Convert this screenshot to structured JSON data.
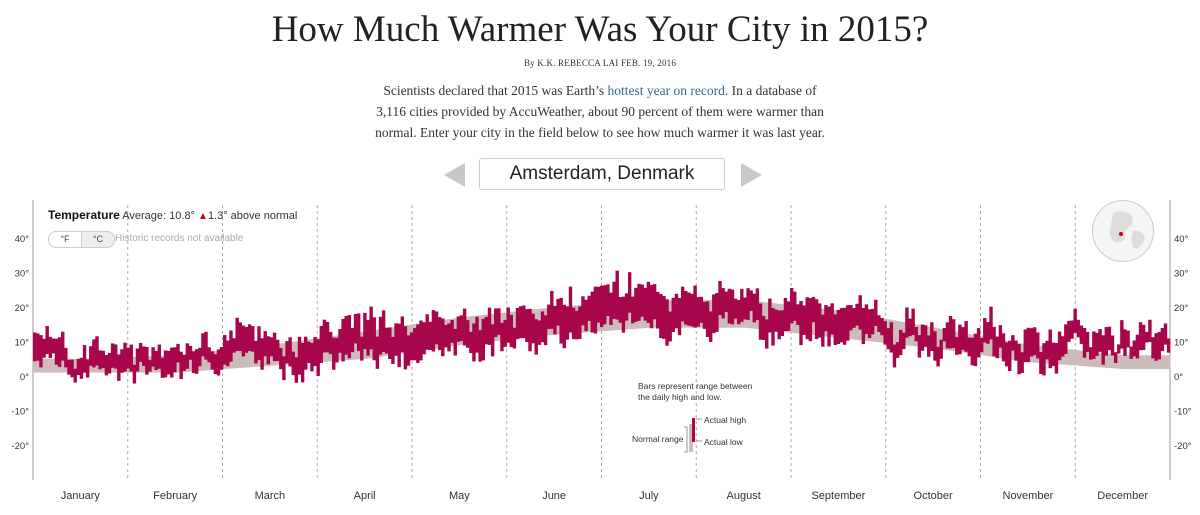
{
  "headline": "How Much Warmer Was Your City in 2015?",
  "byline": "By K.K. REBECCA LAI FEB. 19, 2016",
  "intro": {
    "before": "Scientists declared that 2015 was Earth’s ",
    "link": "hottest year on record",
    "after": ". In a database of 3,116 cities provided by AccuWeather, about 90 percent of them were warmer than normal. Enter your city in the field below to see how much warmer it was last year."
  },
  "city_search": {
    "value": "Amsterdam, Denmark"
  },
  "legend": {
    "label": "Temperature",
    "average_text": "Average: 10.8°",
    "delta_arrow": "▲",
    "delta_text": "1.3° above normal",
    "unit_f": "°F",
    "unit_c": "°C",
    "historic_note": "Historic records not available"
  },
  "annotation": {
    "line1": "Bars represent range between",
    "line2": "the daily high and low.",
    "actual_high": "Actual high",
    "actual_low": "Actual low",
    "normal_range": "Normal range"
  },
  "colors": {
    "actual": "#a8064a",
    "normal": "#cdbcbc",
    "accent_link": "#326891"
  },
  "chart_data": {
    "type": "bar",
    "y_ticks": [
      "40°",
      "30°",
      "20°",
      "10°",
      "0°",
      "-10°",
      "-20°"
    ],
    "y_tick_values": [
      40,
      30,
      20,
      10,
      0,
      -10,
      -20
    ],
    "ylim": [
      -30,
      45
    ],
    "months": [
      "January",
      "February",
      "March",
      "April",
      "May",
      "June",
      "July",
      "August",
      "September",
      "October",
      "November",
      "December"
    ],
    "normal_band_monthly": {
      "months": [
        "Jan",
        "Feb",
        "Mar",
        "Apr",
        "May",
        "Jun",
        "Jul",
        "Aug",
        "Sep",
        "Oct",
        "Nov",
        "Dec"
      ],
      "low": [
        1,
        1,
        3,
        5,
        9,
        12,
        14,
        14,
        11,
        8,
        4,
        2
      ],
      "high": [
        5,
        6,
        9,
        13,
        17,
        20,
        22,
        22,
        19,
        14,
        9,
        6
      ]
    },
    "actual_monthly_approx": {
      "months": [
        "Jan",
        "Feb",
        "Mar",
        "Apr",
        "May",
        "Jun",
        "Jul",
        "Aug",
        "Sep",
        "Oct",
        "Nov",
        "Dec"
      ],
      "low": [
        1,
        0,
        3,
        5,
        8,
        11,
        14,
        14,
        10,
        7,
        5,
        6
      ],
      "high": [
        7,
        5,
        10,
        14,
        16,
        20,
        24,
        22,
        18,
        13,
        12,
        11
      ]
    },
    "grid": "vertical dashed month separators"
  }
}
